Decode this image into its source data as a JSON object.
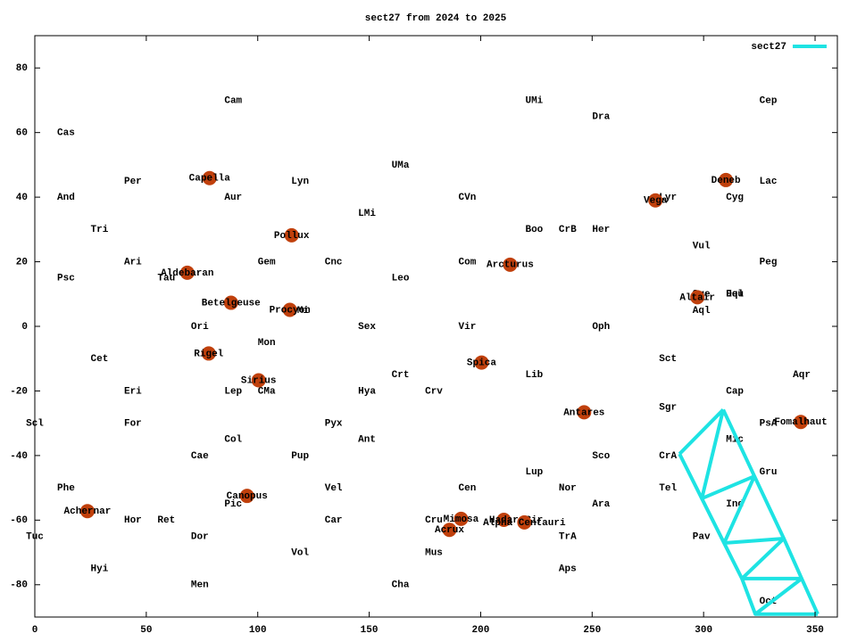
{
  "chart_data": {
    "type": "scatter",
    "title": "sect27 from 2024 to 2025",
    "xlim": [
      0,
      360
    ],
    "ylim": [
      -90,
      90
    ],
    "xticks": [
      0,
      50,
      100,
      150,
      200,
      250,
      300,
      350
    ],
    "yticks": [
      -80,
      -60,
      -40,
      -20,
      0,
      20,
      40,
      60,
      80
    ],
    "legend": "upper right",
    "series": [
      {
        "name": "sect27",
        "color": "#1ee3e3",
        "x": [
          289.2,
          299.2,
          309.2,
          317.2,
          323.2,
          null,
          308.8,
          322.8,
          336,
          344,
          351.2,
          null,
          308.8,
          299.2,
          322.8,
          309.2,
          336,
          317.2,
          344,
          323.2,
          351.2,
          null,
          289.2,
          308.8
        ],
        "y": [
          -39.5,
          -53.3,
          -67.1,
          -78.1,
          -89.1,
          null,
          -25.8,
          -46.4,
          -65.7,
          -78.1,
          -89.1,
          null,
          -25.8,
          -53.3,
          -46.4,
          -67.1,
          -65.7,
          -78.1,
          -78.1,
          -89.1,
          -89.1,
          null,
          -39.5,
          -25.8
        ]
      }
    ],
    "stars": {
      "color": "#c0400c",
      "labels": [
        "Capella",
        "Aldebaran",
        "Betelgeuse",
        "Rigel",
        "Pollux",
        "Procyon",
        "Sirius",
        "Canopus",
        "Achernar",
        "Arcturus",
        "Spica",
        "Antares",
        "Mimosa",
        "Acrux",
        "Hadar",
        "Alpha Centauri",
        "Vega",
        "Deneb",
        "Altair",
        "Fomalhaut"
      ],
      "x": [
        78.4,
        68.4,
        88,
        78,
        115.2,
        114.4,
        100.4,
        95.2,
        23.6,
        213.2,
        200.4,
        246.4,
        191.2,
        186,
        210.4,
        219.6,
        278.4,
        310,
        297.2,
        343.6
      ],
      "y": [
        45.9,
        16.6,
        7.3,
        -8.4,
        28.2,
        5.1,
        -16.7,
        -52.5,
        -57.2,
        19.1,
        -11.2,
        -26.6,
        -59.6,
        -63,
        -59.9,
        -60.7,
        39,
        45.3,
        9,
        -29.6
      ]
    },
    "annotations": [
      {
        "text": "Cam",
        "x": 89,
        "y": 70
      },
      {
        "text": "Cas",
        "x": 14,
        "y": 60
      },
      {
        "text": "UMi",
        "x": 224,
        "y": 70
      },
      {
        "text": "Dra",
        "x": 254,
        "y": 65
      },
      {
        "text": "Cep",
        "x": 329,
        "y": 70
      },
      {
        "text": "Per",
        "x": 44,
        "y": 45
      },
      {
        "text": "Lyn",
        "x": 119,
        "y": 45
      },
      {
        "text": "UMa",
        "x": 164,
        "y": 50
      },
      {
        "text": "And",
        "x": 14,
        "y": 40
      },
      {
        "text": "Aur",
        "x": 89,
        "y": 40
      },
      {
        "text": "CVn",
        "x": 194,
        "y": 40
      },
      {
        "text": "Lyr",
        "x": 284,
        "y": 40
      },
      {
        "text": "Cyg",
        "x": 314,
        "y": 40
      },
      {
        "text": "Lac",
        "x": 329,
        "y": 45
      },
      {
        "text": "LMi",
        "x": 149,
        "y": 35
      },
      {
        "text": "Tri",
        "x": 29,
        "y": 30
      },
      {
        "text": "Boo",
        "x": 224,
        "y": 30
      },
      {
        "text": "CrB",
        "x": 239,
        "y": 30
      },
      {
        "text": "Her",
        "x": 254,
        "y": 30
      },
      {
        "text": "Vul",
        "x": 299,
        "y": 25
      },
      {
        "text": "Ari",
        "x": 44,
        "y": 20
      },
      {
        "text": "Gem",
        "x": 104,
        "y": 20
      },
      {
        "text": "Cnc",
        "x": 134,
        "y": 20
      },
      {
        "text": "Com",
        "x": 194,
        "y": 20
      },
      {
        "text": "Peg",
        "x": 329,
        "y": 20
      },
      {
        "text": "Psc",
        "x": 14,
        "y": 15
      },
      {
        "text": "Tau",
        "x": 59,
        "y": 15
      },
      {
        "text": "Leo",
        "x": 164,
        "y": 15
      },
      {
        "text": "Sge",
        "x": 299,
        "y": 10
      },
      {
        "text": "Del",
        "x": 314,
        "y": 10
      },
      {
        "text": "Equ",
        "x": 314,
        "y": 10
      },
      {
        "text": "CMi",
        "x": 119,
        "y": 5
      },
      {
        "text": "Aql",
        "x": 299,
        "y": 5
      },
      {
        "text": "Ori",
        "x": 74,
        "y": 0
      },
      {
        "text": "Sex",
        "x": 149,
        "y": 0
      },
      {
        "text": "Vir",
        "x": 194,
        "y": 0
      },
      {
        "text": "Oph",
        "x": 254,
        "y": 0
      },
      {
        "text": "Mon",
        "x": 104,
        "y": -5
      },
      {
        "text": "Cet",
        "x": 29,
        "y": -10
      },
      {
        "text": "Sct",
        "x": 284,
        "y": -10
      },
      {
        "text": "Crt",
        "x": 164,
        "y": -15
      },
      {
        "text": "Lib",
        "x": 224,
        "y": -15
      },
      {
        "text": "Aqr",
        "x": 344,
        "y": -15
      },
      {
        "text": "Eri",
        "x": 44,
        "y": -20
      },
      {
        "text": "Lep",
        "x": 89,
        "y": -20
      },
      {
        "text": "CMa",
        "x": 104,
        "y": -20
      },
      {
        "text": "Hya",
        "x": 149,
        "y": -20
      },
      {
        "text": "Crv",
        "x": 179,
        "y": -20
      },
      {
        "text": "Cap",
        "x": 314,
        "y": -20
      },
      {
        "text": "Sgr",
        "x": 284,
        "y": -25
      },
      {
        "text": "Scl",
        "x": 0,
        "y": -30
      },
      {
        "text": "For",
        "x": 44,
        "y": -30
      },
      {
        "text": "Pyx",
        "x": 134,
        "y": -30
      },
      {
        "text": "PsA",
        "x": 329,
        "y": -30
      },
      {
        "text": "Col",
        "x": 89,
        "y": -35
      },
      {
        "text": "Ant",
        "x": 149,
        "y": -35
      },
      {
        "text": "Mic",
        "x": 314,
        "y": -35
      },
      {
        "text": "Cae",
        "x": 74,
        "y": -40
      },
      {
        "text": "Pup",
        "x": 119,
        "y": -40
      },
      {
        "text": "Sco",
        "x": 254,
        "y": -40
      },
      {
        "text": "CrA",
        "x": 284,
        "y": -40
      },
      {
        "text": "Gru",
        "x": 329,
        "y": -45
      },
      {
        "text": "Lup",
        "x": 224,
        "y": -45
      },
      {
        "text": "Phe",
        "x": 14,
        "y": -50
      },
      {
        "text": "Vel",
        "x": 134,
        "y": -50
      },
      {
        "text": "Cen",
        "x": 194,
        "y": -50
      },
      {
        "text": "Nor",
        "x": 239,
        "y": -50
      },
      {
        "text": "Tel",
        "x": 284,
        "y": -50
      },
      {
        "text": "Pic",
        "x": 89,
        "y": -55
      },
      {
        "text": "Ara",
        "x": 254,
        "y": -55
      },
      {
        "text": "Ind",
        "x": 314,
        "y": -55
      },
      {
        "text": "Hor",
        "x": 44,
        "y": -60
      },
      {
        "text": "Ret",
        "x": 59,
        "y": -60
      },
      {
        "text": "Car",
        "x": 134,
        "y": -60
      },
      {
        "text": "Cru",
        "x": 179,
        "y": -60
      },
      {
        "text": "Cir",
        "x": 224,
        "y": -60
      },
      {
        "text": "Tuc",
        "x": 0,
        "y": -65
      },
      {
        "text": "Dor",
        "x": 74,
        "y": -65
      },
      {
        "text": "TrA",
        "x": 239,
        "y": -65
      },
      {
        "text": "Pav",
        "x": 299,
        "y": -65
      },
      {
        "text": "Vol",
        "x": 119,
        "y": -70
      },
      {
        "text": "Mus",
        "x": 179,
        "y": -70
      },
      {
        "text": "Hyi",
        "x": 29,
        "y": -75
      },
      {
        "text": "Aps",
        "x": 239,
        "y": -75
      },
      {
        "text": "Men",
        "x": 74,
        "y": -80
      },
      {
        "text": "Cha",
        "x": 164,
        "y": -80
      },
      {
        "text": "Oct",
        "x": 329,
        "y": -85
      }
    ]
  }
}
